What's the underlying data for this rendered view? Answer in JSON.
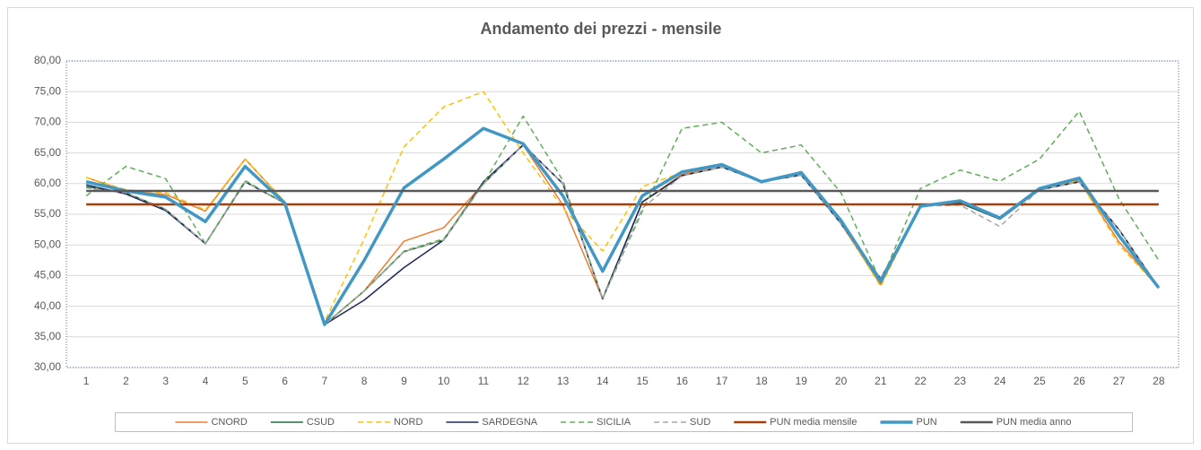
{
  "chart_data": {
    "type": "line",
    "title": "Andamento dei prezzi - mensile",
    "categories": [
      1,
      2,
      3,
      4,
      5,
      6,
      7,
      8,
      9,
      10,
      11,
      12,
      13,
      14,
      15,
      16,
      17,
      18,
      19,
      20,
      21,
      22,
      23,
      24,
      25,
      26,
      27,
      28
    ],
    "ylim": [
      30,
      80
    ],
    "yticks": [
      {
        "value": 30,
        "label": "30,00"
      },
      {
        "value": 35,
        "label": "35,00"
      },
      {
        "value": 40,
        "label": "40,00"
      },
      {
        "value": 45,
        "label": "45,00"
      },
      {
        "value": 50,
        "label": "50,00"
      },
      {
        "value": 55,
        "label": "55,00"
      },
      {
        "value": 60,
        "label": "60,00"
      },
      {
        "value": 65,
        "label": "65,00"
      },
      {
        "value": 70,
        "label": "70,00"
      },
      {
        "value": 75,
        "label": "75,00"
      },
      {
        "value": 80,
        "label": "80,00"
      }
    ],
    "grid": true,
    "legend": "bottom",
    "series": [
      {
        "name": "CNORD",
        "color": "#ed7d31",
        "line_style": "solid",
        "line_width": 1.5,
        "values": [
          61.0,
          58.8,
          58.2,
          55.5,
          64.0,
          57.0,
          37.0,
          42.5,
          50.6,
          52.8,
          60.0,
          66.3,
          56.5,
          41.2,
          57.0,
          61.5,
          63.0,
          60.3,
          61.6,
          53.5,
          43.5,
          56.3,
          57.0,
          54.4,
          59.0,
          60.5,
          50.5,
          43.0
        ]
      },
      {
        "name": "CSUD",
        "color": "#1e6b3c",
        "line_style": "solid",
        "line_width": 1.5,
        "values": [
          59.5,
          58.5,
          55.8,
          50.2,
          60.3,
          56.8,
          37.0,
          42.5,
          48.9,
          50.8,
          60.0,
          66.3,
          60.0,
          41.2,
          57.0,
          61.3,
          62.7,
          60.3,
          61.4,
          53.5,
          44.5,
          56.3,
          56.8,
          54.2,
          59.0,
          60.3,
          52.5,
          43.0
        ]
      },
      {
        "name": "NORD",
        "color": "#ffc000",
        "line_style": "dashed",
        "line_width": 1.5,
        "values": [
          61.0,
          59.0,
          58.5,
          55.7,
          64.0,
          57.0,
          37.5,
          51.0,
          66.0,
          72.5,
          75.0,
          65.0,
          56.0,
          49.0,
          59.5,
          61.8,
          63.0,
          60.3,
          61.7,
          53.8,
          43.2,
          56.3,
          57.2,
          54.4,
          59.0,
          60.5,
          50.0,
          43.0
        ]
      },
      {
        "name": "SARDEGNA",
        "color": "#1f2a5c",
        "line_style": "solid",
        "line_width": 1.5,
        "values": [
          59.8,
          58.3,
          55.6,
          50.2,
          60.3,
          56.8,
          37.0,
          41.0,
          46.3,
          50.8,
          60.3,
          66.3,
          60.0,
          41.2,
          57.0,
          61.3,
          62.7,
          60.3,
          61.4,
          53.5,
          44.5,
          56.3,
          57.0,
          54.2,
          59.0,
          60.3,
          52.5,
          43.0
        ]
      },
      {
        "name": "SICILIA",
        "color": "#5fae57",
        "line_style": "dashed",
        "line_width": 1.5,
        "values": [
          58.0,
          62.8,
          60.8,
          50.2,
          60.5,
          56.8,
          37.0,
          42.5,
          49.0,
          51.0,
          60.0,
          71.0,
          60.5,
          41.2,
          55.5,
          69.0,
          70.0,
          65.0,
          66.3,
          58.5,
          44.0,
          59.2,
          62.2,
          60.4,
          64.0,
          71.8,
          57.5,
          47.5
        ]
      },
      {
        "name": "SUD",
        "color": "#a6a6a6",
        "line_style": "dashed",
        "line_width": 1.5,
        "values": [
          59.3,
          58.5,
          55.8,
          50.2,
          60.3,
          56.8,
          37.0,
          42.5,
          48.9,
          50.8,
          60.0,
          66.3,
          60.0,
          41.2,
          56.0,
          61.3,
          62.7,
          60.3,
          61.4,
          53.5,
          44.5,
          56.3,
          56.5,
          53.0,
          59.0,
          60.3,
          52.5,
          43.0
        ]
      },
      {
        "name": "PUN media mensile",
        "color": "#a5400c",
        "line_style": "solid",
        "line_width": 2.5,
        "values": [
          56.6,
          56.6,
          56.6,
          56.6,
          56.6,
          56.6,
          56.6,
          56.6,
          56.6,
          56.6,
          56.6,
          56.6,
          56.6,
          56.6,
          56.6,
          56.6,
          56.6,
          56.6,
          56.6,
          56.6,
          56.6,
          56.6,
          56.6,
          56.6,
          56.6,
          56.6,
          56.6,
          56.6
        ]
      },
      {
        "name": "PUN",
        "color": "#4198c4",
        "line_style": "solid",
        "line_width": 3.5,
        "values": [
          60.3,
          58.8,
          57.8,
          53.8,
          62.8,
          56.8,
          37.0,
          47.5,
          59.3,
          64.0,
          69.0,
          66.5,
          58.0,
          45.7,
          58.0,
          61.9,
          63.1,
          60.3,
          61.8,
          54.0,
          44.0,
          56.3,
          57.2,
          54.4,
          59.2,
          60.9,
          51.5,
          43.0
        ]
      },
      {
        "name": "PUN media anno",
        "color": "#595959",
        "line_style": "solid",
        "line_width": 2.5,
        "values": [
          58.8,
          58.8,
          58.8,
          58.8,
          58.8,
          58.8,
          58.8,
          58.8,
          58.8,
          58.8,
          58.8,
          58.8,
          58.8,
          58.8,
          58.8,
          58.8,
          58.8,
          58.8,
          58.8,
          58.8,
          58.8,
          58.8,
          58.8,
          58.8,
          58.8,
          58.8,
          58.8,
          58.8
        ]
      }
    ]
  }
}
